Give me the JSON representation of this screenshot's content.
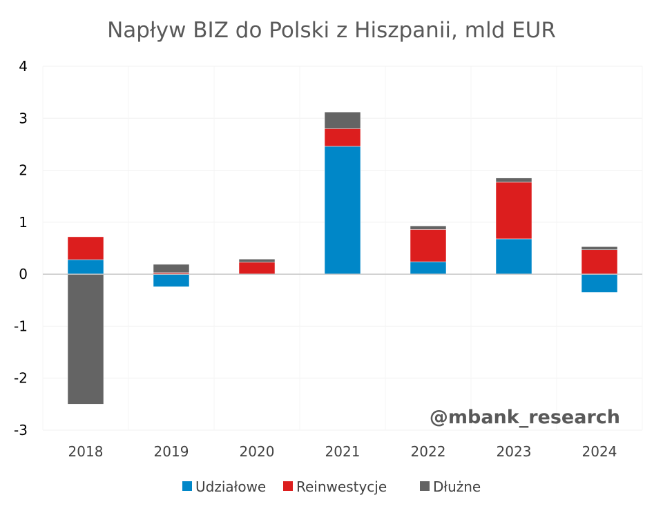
{
  "chart_data": {
    "type": "bar",
    "stacked": true,
    "title": "Napływ BIZ do Polski z Hiszpanii, mld EUR",
    "xlabel": "",
    "ylabel": "",
    "ylim": [
      -3,
      4
    ],
    "yticks": [
      -3,
      -2,
      -1,
      0,
      1,
      2,
      3,
      4
    ],
    "categories": [
      "2018",
      "2019",
      "2020",
      "2021",
      "2022",
      "2023",
      "2024"
    ],
    "series": [
      {
        "name": "Udziałowe",
        "color": "#0087C8",
        "values": [
          0.28,
          -0.24,
          -0.01,
          2.46,
          0.24,
          0.68,
          -0.35
        ]
      },
      {
        "name": "Reinwestycje",
        "color": "#DC1E1E",
        "values": [
          0.44,
          0.03,
          0.23,
          0.34,
          0.62,
          1.09,
          0.47
        ]
      },
      {
        "name": "Dłużne",
        "color": "#646464",
        "values": [
          -2.5,
          0.16,
          0.06,
          0.32,
          0.07,
          0.08,
          0.06
        ]
      }
    ],
    "legend_position": "bottom",
    "grid": true,
    "watermark": "@mbank_research"
  }
}
